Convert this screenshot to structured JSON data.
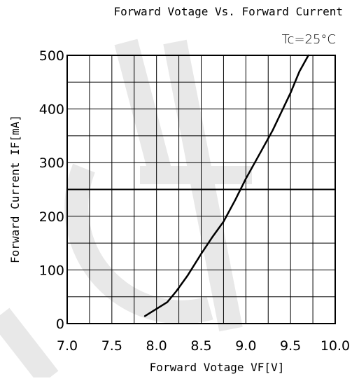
{
  "chart_data": {
    "type": "line",
    "title": "Forward Votage Vs. Forward Current",
    "condition": "Tc=25°C",
    "xlabel": "Forward Votage VF[V]",
    "ylabel": "Forward Current IF[mA]",
    "xlim": [
      7.0,
      10.0
    ],
    "ylim": [
      0,
      500
    ],
    "x_ticks": [
      "7.0",
      "7.5",
      "8.0",
      "8.5",
      "9.0",
      "9.5",
      "10.0"
    ],
    "y_ticks": [
      "0",
      "100",
      "200",
      "300",
      "400",
      "500"
    ],
    "grid": true,
    "series": [
      {
        "x": [
          7.87,
          8.12,
          8.22,
          8.35,
          8.5,
          8.62,
          8.75,
          8.88,
          9.0,
          9.15,
          9.3,
          9.5,
          9.6,
          9.7
        ],
        "y": [
          14,
          40,
          60,
          90,
          130,
          160,
          190,
          230,
          270,
          315,
          360,
          430,
          470,
          500
        ]
      }
    ],
    "colors": {
      "line": "#000000",
      "grid": "#000000",
      "watermark": "#e8e8e8"
    }
  }
}
